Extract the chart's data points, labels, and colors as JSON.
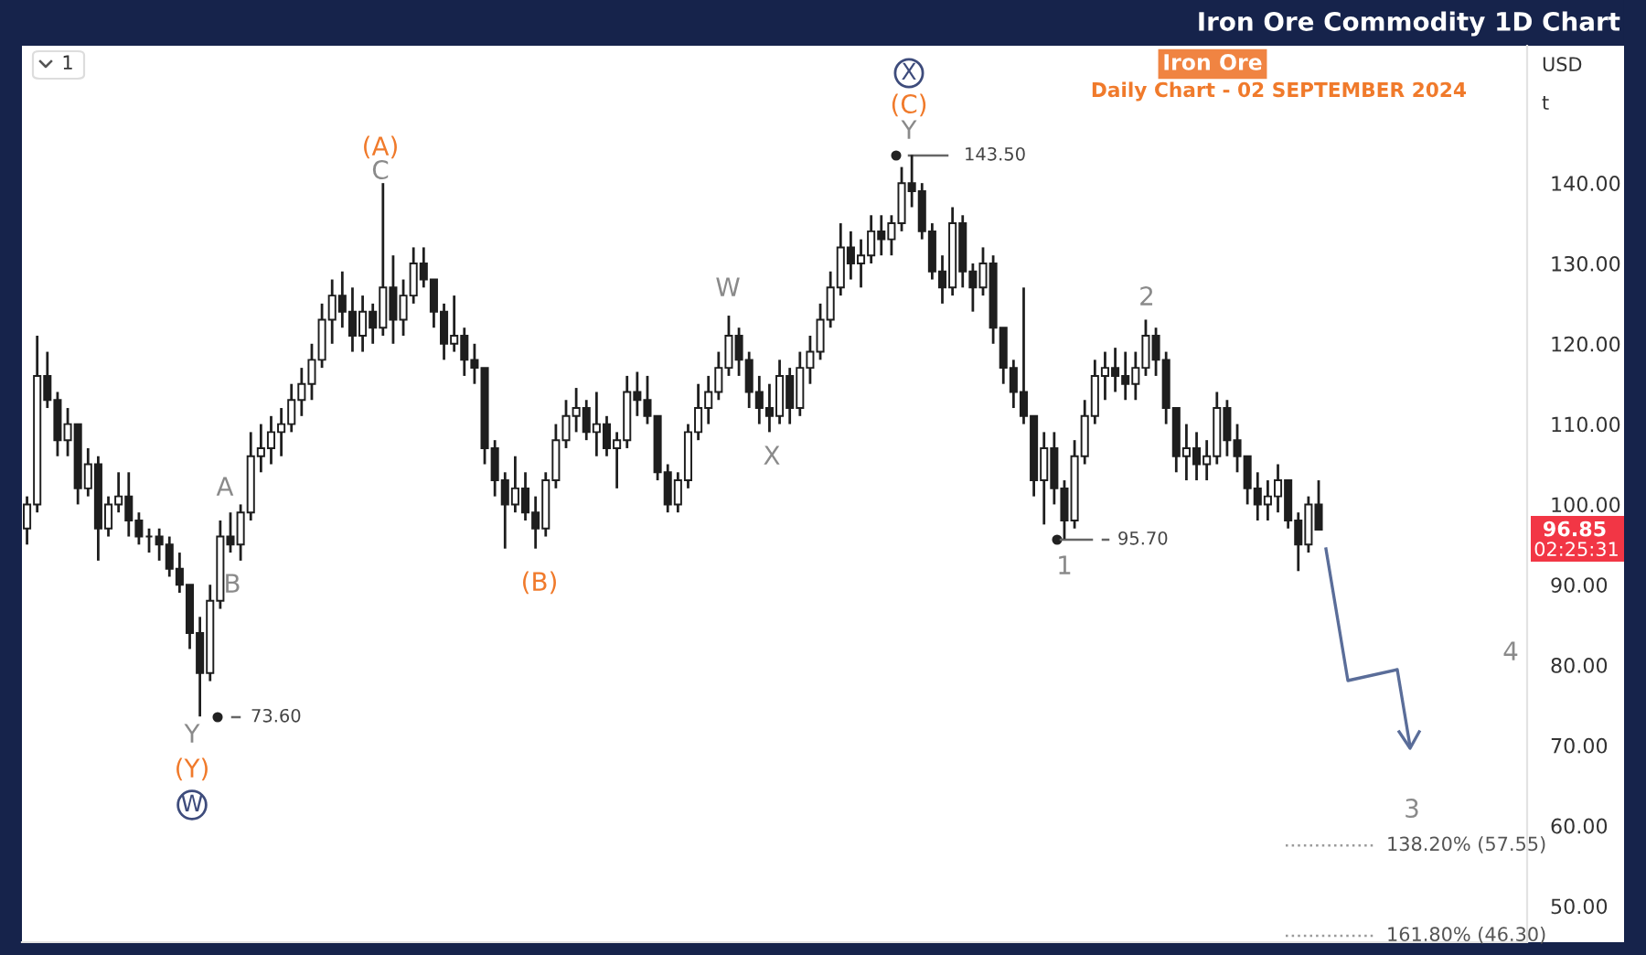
{
  "chart_data": {
    "type": "candlestick",
    "title": "Iron Ore Commodity 1D Chart",
    "subtitle": "Daily Chart - 02 SEPTEMBER 2024",
    "annotations": [
      "Iron Ore",
      "1",
      "USD",
      "t",
      "(A)",
      "C",
      "A",
      "B",
      "Y",
      "(Y)",
      "W",
      "73.60",
      "(B)",
      "W",
      "X",
      "X",
      "(C)",
      "Y",
      "143.50",
      "1",
      "95.70",
      "2",
      "4",
      "3",
      "96.85",
      "02:25:31"
    ],
    "categories": [
      null,
      null,
      null,
      null,
      null,
      null,
      null,
      null,
      null,
      null,
      null,
      null,
      null,
      null,
      null,
      null,
      null,
      null,
      null,
      null,
      null,
      null,
      null,
      null,
      null,
      null,
      null,
      null,
      null,
      null,
      null,
      null,
      null,
      null,
      null,
      null,
      null,
      null,
      null,
      null,
      null,
      null,
      null,
      null,
      null,
      null,
      null,
      null,
      null,
      null,
      null,
      null,
      null,
      null,
      null,
      null,
      null,
      null,
      null,
      null,
      null,
      null,
      null,
      null,
      null,
      null,
      null,
      null,
      null,
      null,
      null,
      null,
      null,
      null,
      null,
      null,
      null,
      null,
      null,
      null,
      null,
      null,
      null,
      null,
      null,
      null,
      null,
      null,
      null,
      null,
      null,
      null,
      null,
      null,
      null,
      null,
      null,
      null,
      null,
      null,
      null,
      null,
      null,
      null,
      null,
      null,
      null,
      null,
      null,
      null,
      null,
      null,
      null,
      null,
      null,
      null,
      null,
      null,
      null,
      null,
      null,
      null,
      null,
      null,
      null,
      null,
      null,
      null,
      null,
      null,
      null,
      null,
      null,
      null,
      null,
      null,
      null,
      null,
      null,
      null,
      null,
      null,
      null,
      null,
      null,
      null,
      null,
      null
    ],
    "ohlc": [
      [
        97,
        101,
        95,
        100
      ],
      [
        100,
        121,
        99,
        116
      ],
      [
        116,
        119,
        112,
        113
      ],
      [
        113,
        114,
        106,
        108
      ],
      [
        108,
        112,
        106,
        110
      ],
      [
        110,
        110,
        100,
        102
      ],
      [
        102,
        107,
        101,
        105
      ],
      [
        105,
        106,
        93,
        97
      ],
      [
        97,
        101,
        96,
        100
      ],
      [
        100,
        104,
        99,
        101
      ],
      [
        101,
        104,
        96,
        98
      ],
      [
        98,
        99,
        95,
        96
      ],
      [
        96,
        97,
        94,
        96
      ],
      [
        96,
        97,
        93,
        95
      ],
      [
        95,
        96,
        91,
        92
      ],
      [
        92,
        94,
        89,
        90
      ],
      [
        90,
        90,
        82,
        84
      ],
      [
        84,
        86,
        73.6,
        79
      ],
      [
        79,
        90,
        78,
        88
      ],
      [
        88,
        98,
        87,
        96
      ],
      [
        96,
        99,
        94,
        95
      ],
      [
        95,
        100,
        93,
        99
      ],
      [
        99,
        109,
        98,
        106
      ],
      [
        106,
        110,
        104,
        107
      ],
      [
        107,
        111,
        105,
        109
      ],
      [
        109,
        112,
        106,
        110
      ],
      [
        110,
        115,
        109,
        113
      ],
      [
        113,
        117,
        111,
        115
      ],
      [
        115,
        120,
        113,
        118
      ],
      [
        118,
        125,
        117,
        123
      ],
      [
        123,
        128,
        120,
        126
      ],
      [
        126,
        129,
        122,
        124
      ],
      [
        124,
        127,
        119,
        121
      ],
      [
        121,
        126,
        119,
        124
      ],
      [
        124,
        125,
        120,
        122
      ],
      [
        122,
        140,
        121,
        127
      ],
      [
        127,
        131,
        120,
        123
      ],
      [
        123,
        128,
        121,
        126
      ],
      [
        126,
        132,
        125,
        130
      ],
      [
        130,
        132,
        127,
        128
      ],
      [
        128,
        128,
        122,
        124
      ],
      [
        124,
        125,
        118,
        120
      ],
      [
        120,
        126,
        119,
        121
      ],
      [
        121,
        122,
        116,
        118
      ],
      [
        118,
        120,
        115,
        117
      ],
      [
        117,
        117,
        105,
        107
      ],
      [
        107,
        108,
        101,
        103
      ],
      [
        103,
        104,
        94.5,
        100
      ],
      [
        100,
        106,
        99,
        102
      ],
      [
        102,
        104,
        98,
        99
      ],
      [
        99,
        101,
        94.5,
        97
      ],
      [
        97,
        104,
        96,
        103
      ],
      [
        103,
        110,
        102,
        108
      ],
      [
        108,
        113,
        107,
        111
      ],
      [
        111,
        114.5,
        109,
        112
      ],
      [
        112,
        113,
        108,
        109
      ],
      [
        109,
        114,
        106,
        110
      ],
      [
        110,
        111,
        106,
        107
      ],
      [
        107,
        109,
        102,
        108
      ],
      [
        108,
        116,
        107,
        114
      ],
      [
        114,
        116.5,
        111,
        113
      ],
      [
        113,
        116,
        110,
        111
      ],
      [
        111,
        111,
        103,
        104
      ],
      [
        104,
        105,
        99,
        100
      ],
      [
        100,
        104,
        99,
        103
      ],
      [
        103,
        110,
        102,
        109
      ],
      [
        109,
        115,
        108,
        112
      ],
      [
        112,
        116,
        110,
        114
      ],
      [
        114,
        119,
        113,
        117
      ],
      [
        117,
        123.5,
        116,
        121
      ],
      [
        121,
        122,
        116,
        118
      ],
      [
        118,
        119,
        112,
        114
      ],
      [
        114,
        116,
        110,
        112
      ],
      [
        112,
        115,
        109,
        111
      ],
      [
        111,
        118,
        110,
        116
      ],
      [
        116,
        117,
        110,
        112
      ],
      [
        112,
        119,
        111,
        117
      ],
      [
        117,
        121,
        115,
        119
      ],
      [
        119,
        125,
        118,
        123
      ],
      [
        123,
        129,
        122,
        127
      ],
      [
        127,
        135,
        126,
        132
      ],
      [
        132,
        134,
        128,
        130
      ],
      [
        130,
        133,
        127,
        131
      ],
      [
        131,
        136,
        130,
        134
      ],
      [
        134,
        136,
        131,
        133
      ],
      [
        133,
        136,
        131,
        135
      ],
      [
        135,
        142,
        134,
        140
      ],
      [
        140,
        143.5,
        137,
        139
      ],
      [
        139,
        140,
        133,
        134
      ],
      [
        134,
        135,
        128,
        129
      ],
      [
        129,
        131,
        125,
        127
      ],
      [
        127,
        137,
        126,
        135
      ],
      [
        135,
        136,
        127,
        129
      ],
      [
        129,
        130,
        124,
        127
      ],
      [
        127,
        132,
        126,
        130
      ],
      [
        130,
        131,
        120,
        122
      ],
      [
        122,
        122,
        115,
        117
      ],
      [
        117,
        118,
        112,
        114
      ],
      [
        114,
        127,
        110,
        111
      ],
      [
        111,
        111,
        101,
        103
      ],
      [
        103,
        109,
        97.5,
        107
      ],
      [
        107,
        109,
        100,
        102
      ],
      [
        102,
        103,
        95.7,
        98
      ],
      [
        98,
        108,
        97,
        106
      ],
      [
        106,
        113,
        105,
        111
      ],
      [
        111,
        118,
        110,
        116
      ],
      [
        116,
        119,
        113,
        117
      ],
      [
        117,
        119.5,
        114,
        116
      ],
      [
        116,
        119,
        113,
        115
      ],
      [
        115,
        119,
        113,
        117
      ],
      [
        117,
        123,
        116,
        121
      ],
      [
        121,
        122,
        116,
        118
      ],
      [
        118,
        119,
        110,
        112
      ],
      [
        112,
        112,
        104,
        106
      ],
      [
        106,
        110,
        103,
        107
      ],
      [
        107,
        109,
        103,
        105
      ],
      [
        105,
        108,
        103,
        106
      ],
      [
        106,
        114,
        105,
        112
      ],
      [
        112,
        113,
        106,
        108
      ],
      [
        108,
        110,
        104,
        106
      ],
      [
        106,
        106,
        100,
        102
      ],
      [
        102,
        104,
        98,
        100
      ],
      [
        100,
        103,
        98,
        101
      ],
      [
        101,
        105,
        99,
        103
      ],
      [
        103,
        103,
        97,
        98
      ],
      [
        98,
        99,
        91.7,
        95
      ],
      [
        95,
        101,
        94,
        100
      ],
      [
        100,
        103,
        96.85,
        96.85
      ],
      null,
      null,
      null,
      null,
      null,
      null,
      null,
      null,
      null,
      null,
      null,
      null,
      null,
      null,
      null,
      null,
      null,
      null,
      null,
      null
    ],
    "color": "#1e1e1e",
    "ylim": [
      45.5,
      157.1
    ],
    "yticks": [
      {
        "value": 50,
        "label": "50.00"
      },
      {
        "value": 60,
        "label": "60.00"
      },
      {
        "value": 70,
        "label": "70.00"
      },
      {
        "value": 80,
        "label": "80.00"
      },
      {
        "value": 90,
        "label": "90.00"
      },
      {
        "value": 100,
        "label": "100.00"
      },
      {
        "value": 110,
        "label": "110.00"
      },
      {
        "value": 120,
        "label": "120.00"
      },
      {
        "value": 130,
        "label": "130.00"
      },
      {
        "value": 140,
        "label": "140.00"
      }
    ],
    "tick_labels": "y",
    "ref_lines": [
      {
        "axis": "y",
        "value": 57.55,
        "label": "138.20% (57.55)",
        "color": "#9a9a9a",
        "line_style": "dotted"
      },
      {
        "axis": "y",
        "value": 46.3,
        "label": "161.80% (46.30)",
        "color": "#9a9a9a",
        "line_style": "dotted"
      }
    ]
  }
}
